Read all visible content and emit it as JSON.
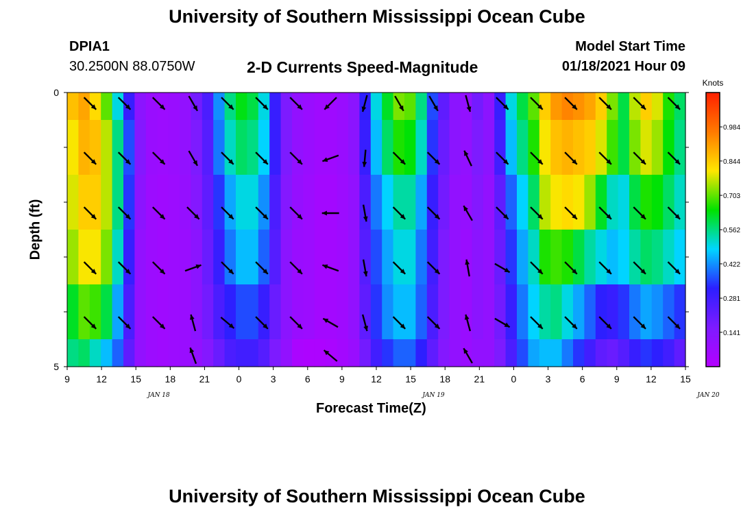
{
  "header": {
    "title": "University of Southern Mississippi Ocean Cube",
    "station_id": "DPIA1",
    "station_coords": "30.2500N 88.0750W",
    "plot_title": "2-D Currents Speed-Magnitude",
    "model_start_label": "Model Start Time",
    "model_start_value": "01/18/2021 Hour 09"
  },
  "footer": {
    "title": "University of Southern Mississippi Ocean Cube"
  },
  "colors": {
    "colormap": [
      "#b400ff",
      "#7d1bff",
      "#2c1fff",
      "#00d6ff",
      "#00e200",
      "#ffe600",
      "#ff7a00",
      "#ff2000"
    ],
    "arrow": "#000000"
  },
  "chart_data": {
    "type": "heatmap",
    "xlabel": "Forecast Time(Z)",
    "ylabel": "Depth (ft)",
    "ylim": [
      0,
      5
    ],
    "y_tick_labels": [
      "0",
      "5"
    ],
    "x_tick_labels": [
      "9",
      "12",
      "15",
      "18",
      "21",
      "0",
      "3",
      "6",
      "9",
      "12",
      "15",
      "18",
      "21",
      "0",
      "3",
      "6",
      "9",
      "12",
      "15"
    ],
    "date_labels": [
      {
        "label": "JAN 18",
        "hour": 17
      },
      {
        "label": "JAN 19",
        "hour": 41
      },
      {
        "label": "JAN 20",
        "hour": 65
      }
    ],
    "x_range_hours": [
      9,
      63
    ],
    "colorbar": {
      "title": "Knots",
      "ticks": [
        "0.984",
        "0.844",
        "0.703",
        "0.562",
        "0.422",
        "0.281",
        "0.141"
      ],
      "range": [
        0.0,
        1.125
      ]
    },
    "layers_depth_ft": [
      "0-0.5",
      "0.5-1.5",
      "1.5-2.5",
      "2.5-3.5",
      "3.5-4.5",
      "4.5-5"
    ],
    "speed_knots": [
      [
        0.86,
        0.9,
        0.82,
        0.7,
        0.5,
        0.3,
        0.12,
        0.08,
        0.07,
        0.08,
        0.1,
        0.18,
        0.26,
        0.42,
        0.56,
        0.63,
        0.6,
        0.5,
        0.3,
        0.16,
        0.1,
        0.08,
        0.06,
        0.06,
        0.08,
        0.12,
        0.32,
        0.5,
        0.62,
        0.72,
        0.7,
        0.56,
        0.36,
        0.22,
        0.12,
        0.1,
        0.18,
        0.12,
        0.3,
        0.5,
        0.6,
        0.7,
        0.84,
        0.92,
        0.95,
        0.93,
        0.9,
        0.84,
        0.72,
        0.6,
        0.76,
        0.84,
        0.78,
        0.66,
        0.58
      ],
      [
        0.8,
        0.88,
        0.86,
        0.76,
        0.56,
        0.36,
        0.14,
        0.08,
        0.07,
        0.08,
        0.1,
        0.16,
        0.24,
        0.4,
        0.52,
        0.58,
        0.56,
        0.48,
        0.3,
        0.16,
        0.1,
        0.08,
        0.06,
        0.06,
        0.08,
        0.12,
        0.3,
        0.46,
        0.58,
        0.66,
        0.64,
        0.52,
        0.34,
        0.2,
        0.12,
        0.1,
        0.16,
        0.12,
        0.28,
        0.46,
        0.56,
        0.66,
        0.8,
        0.86,
        0.88,
        0.86,
        0.84,
        0.78,
        0.68,
        0.6,
        0.72,
        0.78,
        0.74,
        0.64,
        0.56
      ],
      [
        0.78,
        0.84,
        0.84,
        0.76,
        0.56,
        0.34,
        0.12,
        0.07,
        0.06,
        0.07,
        0.09,
        0.14,
        0.22,
        0.34,
        0.44,
        0.5,
        0.5,
        0.42,
        0.26,
        0.14,
        0.09,
        0.07,
        0.05,
        0.05,
        0.07,
        0.1,
        0.26,
        0.4,
        0.48,
        0.54,
        0.54,
        0.44,
        0.3,
        0.18,
        0.1,
        0.09,
        0.14,
        0.1,
        0.22,
        0.38,
        0.48,
        0.58,
        0.76,
        0.8,
        0.82,
        0.8,
        0.74,
        0.62,
        0.52,
        0.5,
        0.6,
        0.66,
        0.64,
        0.58,
        0.52
      ],
      [
        0.74,
        0.8,
        0.8,
        0.72,
        0.52,
        0.3,
        0.1,
        0.07,
        0.06,
        0.07,
        0.08,
        0.12,
        0.2,
        0.3,
        0.4,
        0.46,
        0.46,
        0.38,
        0.24,
        0.12,
        0.08,
        0.07,
        0.05,
        0.05,
        0.06,
        0.1,
        0.24,
        0.36,
        0.44,
        0.5,
        0.5,
        0.4,
        0.28,
        0.16,
        0.1,
        0.08,
        0.12,
        0.1,
        0.2,
        0.34,
        0.44,
        0.52,
        0.66,
        0.68,
        0.66,
        0.6,
        0.54,
        0.5,
        0.46,
        0.48,
        0.54,
        0.58,
        0.56,
        0.52,
        0.48
      ],
      [
        0.62,
        0.7,
        0.68,
        0.6,
        0.44,
        0.26,
        0.1,
        0.07,
        0.06,
        0.07,
        0.08,
        0.12,
        0.18,
        0.26,
        0.32,
        0.36,
        0.36,
        0.3,
        0.2,
        0.12,
        0.08,
        0.07,
        0.05,
        0.05,
        0.06,
        0.1,
        0.22,
        0.34,
        0.42,
        0.46,
        0.46,
        0.38,
        0.26,
        0.16,
        0.1,
        0.08,
        0.12,
        0.1,
        0.18,
        0.3,
        0.4,
        0.48,
        0.54,
        0.56,
        0.5,
        0.44,
        0.38,
        0.32,
        0.3,
        0.34,
        0.4,
        0.44,
        0.42,
        0.38,
        0.34
      ],
      [
        0.56,
        0.58,
        0.52,
        0.46,
        0.38,
        0.22,
        0.1,
        0.07,
        0.06,
        0.07,
        0.08,
        0.1,
        0.14,
        0.2,
        0.26,
        0.28,
        0.28,
        0.24,
        0.16,
        0.1,
        0.03,
        0.02,
        0.02,
        0.03,
        0.05,
        0.08,
        0.18,
        0.28,
        0.34,
        0.38,
        0.38,
        0.32,
        0.22,
        0.14,
        0.1,
        0.08,
        0.1,
        0.1,
        0.16,
        0.26,
        0.36,
        0.44,
        0.46,
        0.46,
        0.4,
        0.34,
        0.28,
        0.22,
        0.2,
        0.24,
        0.3,
        0.34,
        0.32,
        0.28,
        0.22
      ]
    ],
    "vector_hours": [
      11,
      14,
      17,
      20,
      23,
      26,
      29,
      32,
      35,
      38,
      41,
      44,
      47,
      50,
      53,
      56,
      59,
      62
    ],
    "vectors_deg": [
      [
        135,
        135,
        135,
        150,
        135,
        135,
        135,
        225,
        195,
        150,
        150,
        165,
        135,
        135,
        135,
        135,
        135,
        135
      ],
      [
        135,
        135,
        135,
        150,
        135,
        135,
        135,
        250,
        185,
        135,
        135,
        335,
        135,
        135,
        135,
        135,
        135,
        135
      ],
      [
        135,
        135,
        135,
        135,
        135,
        135,
        135,
        270,
        170,
        135,
        135,
        330,
        135,
        135,
        135,
        135,
        135,
        135
      ],
      [
        135,
        135,
        135,
        70,
        135,
        135,
        135,
        290,
        170,
        135,
        135,
        350,
        120,
        135,
        135,
        135,
        135,
        135
      ],
      [
        135,
        135,
        135,
        345,
        130,
        135,
        135,
        300,
        165,
        135,
        135,
        345,
        120,
        135,
        135,
        135,
        135,
        135
      ],
      [
        null,
        null,
        null,
        340,
        null,
        null,
        null,
        310,
        null,
        null,
        null,
        330,
        null,
        null,
        null,
        null,
        null,
        null
      ]
    ]
  }
}
